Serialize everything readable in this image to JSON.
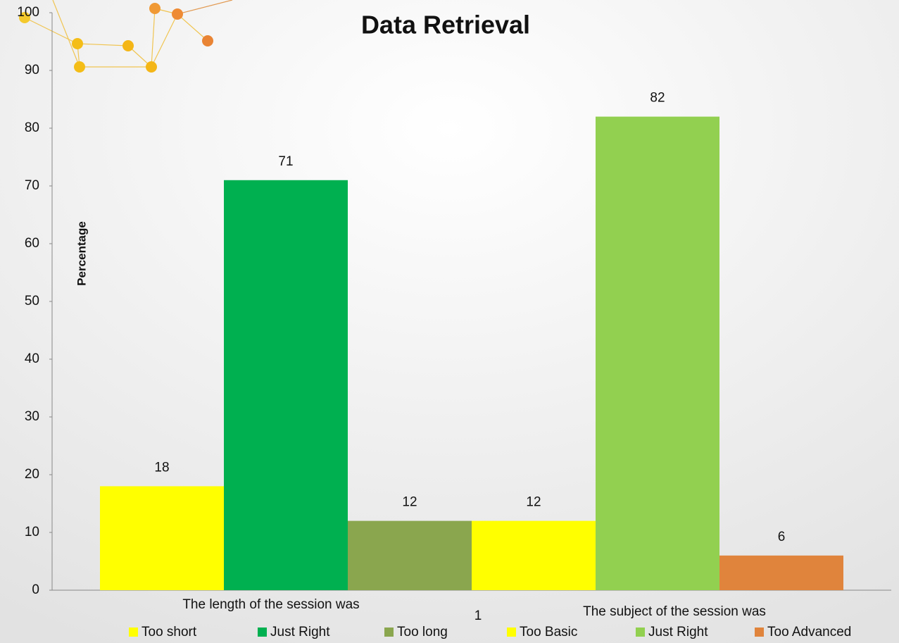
{
  "chart_data": {
    "type": "bar",
    "title": "Data Retrieval",
    "y_label": "Percentage",
    "categories": [
      "1"
    ],
    "annotations": [
      "The length of the session was",
      "The subject of the session was"
    ],
    "series": [
      {
        "name": "Too short",
        "color": "#ffff00",
        "values": [
          18
        ]
      },
      {
        "name": "Just Right",
        "color": "#00b050",
        "values": [
          71
        ]
      },
      {
        "name": "Too long",
        "color": "#8aa64e",
        "values": [
          12
        ]
      },
      {
        "name": "Too Basic",
        "color": "#ffff00",
        "values": [
          12
        ]
      },
      {
        "name": "Just Right",
        "color": "#92d050",
        "values": [
          82
        ]
      },
      {
        "name": "Too Advanced",
        "color": "#e0843c",
        "values": [
          6
        ]
      }
    ],
    "ylim": [
      0,
      100
    ],
    "yticks": [
      0,
      10,
      20,
      30,
      40,
      50,
      60,
      70,
      80,
      90,
      100
    ],
    "grid": false,
    "legend": "bottom",
    "data_labels": true
  }
}
